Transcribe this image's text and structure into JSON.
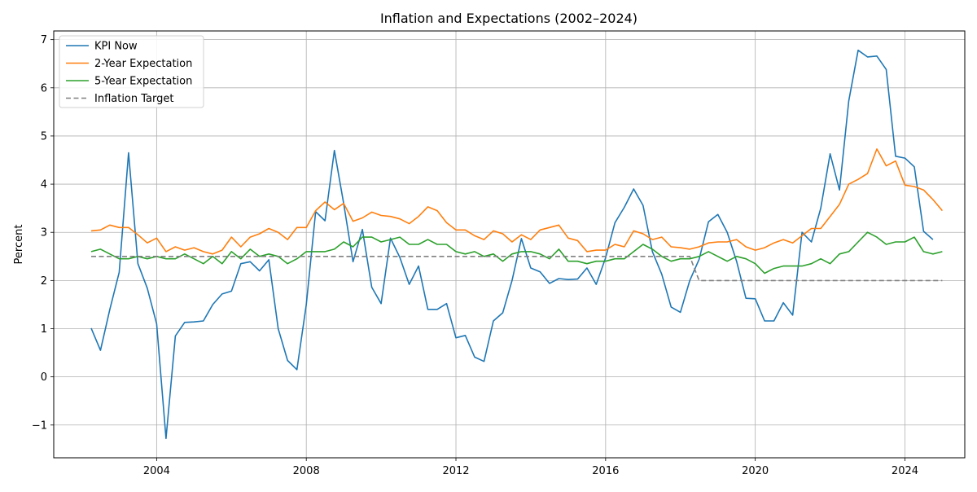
{
  "chart_data": {
    "type": "line",
    "title": "Inflation and Expectations (2002–2024)",
    "xlabel": "",
    "ylabel": "Percent",
    "xlim": [
      2001.25,
      2025.6
    ],
    "ylim": [
      -1.68,
      7.18
    ],
    "x_ticks": [
      2004,
      2008,
      2012,
      2016,
      2020,
      2024
    ],
    "y_ticks": [
      -1,
      0,
      1,
      2,
      3,
      4,
      5,
      6,
      7
    ],
    "y_tick_labels": [
      "−1",
      "0",
      "1",
      "2",
      "3",
      "4",
      "5",
      "6",
      "7"
    ],
    "grid": true,
    "legend_position": "top-left",
    "series": [
      {
        "name": "KPI Now",
        "color": "#1f77b4",
        "style": "solid",
        "x": [
          2002.25,
          2002.5,
          2002.75,
          2003.0,
          2003.25,
          2003.5,
          2003.75,
          2004.0,
          2004.25,
          2004.5,
          2004.75,
          2005.0,
          2005.25,
          2005.5,
          2005.75,
          2006.0,
          2006.25,
          2006.5,
          2006.75,
          2007.0,
          2007.25,
          2007.5,
          2007.75,
          2008.0,
          2008.25,
          2008.5,
          2008.75,
          2009.0,
          2009.25,
          2009.5,
          2009.75,
          2010.0,
          2010.25,
          2010.5,
          2010.75,
          2011.0,
          2011.25,
          2011.5,
          2011.75,
          2012.0,
          2012.25,
          2012.5,
          2012.75,
          2013.0,
          2013.25,
          2013.5,
          2013.75,
          2014.0,
          2014.25,
          2014.5,
          2014.75,
          2015.0,
          2015.25,
          2015.5,
          2015.75,
          2016.0,
          2016.25,
          2016.5,
          2016.75,
          2017.0,
          2017.25,
          2017.5,
          2017.75,
          2018.0,
          2018.25,
          2018.5,
          2018.75,
          2019.0,
          2019.25,
          2019.5,
          2019.75,
          2020.0,
          2020.25,
          2020.5,
          2020.75,
          2021.0,
          2021.25,
          2021.5,
          2021.75,
          2022.0,
          2022.25,
          2022.5,
          2022.75,
          2023.0,
          2023.25,
          2023.5,
          2023.75,
          2024.0,
          2024.25,
          2024.5,
          2024.75
        ],
        "y": [
          1.01,
          0.55,
          1.4,
          2.17,
          4.65,
          2.35,
          1.84,
          1.1,
          -1.28,
          0.85,
          1.13,
          1.14,
          1.16,
          1.5,
          1.72,
          1.78,
          2.35,
          2.39,
          2.2,
          2.43,
          1.0,
          0.34,
          0.15,
          1.5,
          3.43,
          3.24,
          4.7,
          3.6,
          2.39,
          3.06,
          1.86,
          1.52,
          2.88,
          2.48,
          1.92,
          2.3,
          1.4,
          1.4,
          1.52,
          0.81,
          0.86,
          0.41,
          0.32,
          1.16,
          1.33,
          2.0,
          2.87,
          2.26,
          2.18,
          1.94,
          2.04,
          2.02,
          2.03,
          2.26,
          1.92,
          2.47,
          3.2,
          3.52,
          3.9,
          3.56,
          2.6,
          2.13,
          1.45,
          1.34,
          2.0,
          2.44,
          3.22,
          3.37,
          3.0,
          2.4,
          1.63,
          1.62,
          1.16,
          1.16,
          1.54,
          1.28,
          3.0,
          2.8,
          3.5,
          4.63,
          3.88,
          5.73,
          6.78,
          6.64,
          6.66,
          6.38,
          4.58,
          4.54,
          4.36,
          3.02,
          2.85
        ]
      },
      {
        "name": "2-Year Expectation",
        "color": "#ff7f0e",
        "style": "solid",
        "x": [
          2002.25,
          2002.5,
          2002.75,
          2003.0,
          2003.25,
          2003.5,
          2003.75,
          2004.0,
          2004.25,
          2004.5,
          2004.75,
          2005.0,
          2005.25,
          2005.5,
          2005.75,
          2006.0,
          2006.25,
          2006.5,
          2006.75,
          2007.0,
          2007.25,
          2007.5,
          2007.75,
          2008.0,
          2008.25,
          2008.5,
          2008.75,
          2009.0,
          2009.25,
          2009.5,
          2009.75,
          2010.0,
          2010.25,
          2010.5,
          2010.75,
          2011.0,
          2011.25,
          2011.5,
          2011.75,
          2012.0,
          2012.25,
          2012.5,
          2012.75,
          2013.0,
          2013.25,
          2013.5,
          2013.75,
          2014.0,
          2014.25,
          2014.5,
          2014.75,
          2015.0,
          2015.25,
          2015.5,
          2015.75,
          2016.0,
          2016.25,
          2016.5,
          2016.75,
          2017.0,
          2017.25,
          2017.5,
          2017.75,
          2018.0,
          2018.25,
          2018.5,
          2018.75,
          2019.0,
          2019.25,
          2019.5,
          2019.75,
          2020.0,
          2020.25,
          2020.5,
          2020.75,
          2021.0,
          2021.25,
          2021.5,
          2021.75,
          2022.0,
          2022.25,
          2022.5,
          2022.75,
          2023.0,
          2023.25,
          2023.5,
          2023.75,
          2024.0,
          2024.25,
          2024.5,
          2024.75,
          2025.0
        ],
        "y": [
          3.03,
          3.05,
          3.15,
          3.1,
          3.1,
          2.95,
          2.78,
          2.88,
          2.6,
          2.7,
          2.63,
          2.68,
          2.6,
          2.55,
          2.63,
          2.9,
          2.7,
          2.9,
          2.97,
          3.08,
          3.0,
          2.85,
          3.1,
          3.1,
          3.45,
          3.63,
          3.47,
          3.6,
          3.23,
          3.3,
          3.42,
          3.35,
          3.33,
          3.28,
          3.18,
          3.33,
          3.53,
          3.45,
          3.2,
          3.05,
          3.05,
          2.93,
          2.85,
          3.03,
          2.97,
          2.8,
          2.95,
          2.85,
          3.05,
          3.1,
          3.15,
          2.88,
          2.83,
          2.6,
          2.63,
          2.63,
          2.75,
          2.7,
          3.03,
          2.97,
          2.85,
          2.9,
          2.7,
          2.68,
          2.65,
          2.7,
          2.78,
          2.8,
          2.8,
          2.85,
          2.7,
          2.63,
          2.68,
          2.78,
          2.85,
          2.78,
          2.93,
          3.08,
          3.08,
          3.33,
          3.58,
          4.0,
          4.1,
          4.22,
          4.73,
          4.38,
          4.48,
          3.98,
          3.95,
          3.88,
          3.68,
          3.45
        ]
      },
      {
        "name": "5-Year Expectation",
        "color": "#2ca02c",
        "style": "solid",
        "x": [
          2002.25,
          2002.5,
          2002.75,
          2003.0,
          2003.25,
          2003.5,
          2003.75,
          2004.0,
          2004.25,
          2004.5,
          2004.75,
          2005.0,
          2005.25,
          2005.5,
          2005.75,
          2006.0,
          2006.25,
          2006.5,
          2006.75,
          2007.0,
          2007.25,
          2007.5,
          2007.75,
          2008.0,
          2008.25,
          2008.5,
          2008.75,
          2009.0,
          2009.25,
          2009.5,
          2009.75,
          2010.0,
          2010.25,
          2010.5,
          2010.75,
          2011.0,
          2011.25,
          2011.5,
          2011.75,
          2012.0,
          2012.25,
          2012.5,
          2012.75,
          2013.0,
          2013.25,
          2013.5,
          2013.75,
          2014.0,
          2014.25,
          2014.5,
          2014.75,
          2015.0,
          2015.25,
          2015.5,
          2015.75,
          2016.0,
          2016.25,
          2016.5,
          2016.75,
          2017.0,
          2017.25,
          2017.5,
          2017.75,
          2018.0,
          2018.25,
          2018.5,
          2018.75,
          2019.0,
          2019.25,
          2019.5,
          2019.75,
          2020.0,
          2020.25,
          2020.5,
          2020.75,
          2021.0,
          2021.25,
          2021.5,
          2021.75,
          2022.0,
          2022.25,
          2022.5,
          2022.75,
          2023.0,
          2023.25,
          2023.5,
          2023.75,
          2024.0,
          2024.25,
          2024.5,
          2024.75,
          2025.0
        ],
        "y": [
          2.6,
          2.65,
          2.55,
          2.45,
          2.45,
          2.5,
          2.45,
          2.5,
          2.45,
          2.45,
          2.55,
          2.45,
          2.35,
          2.5,
          2.35,
          2.6,
          2.45,
          2.65,
          2.5,
          2.55,
          2.5,
          2.35,
          2.45,
          2.6,
          2.6,
          2.6,
          2.65,
          2.8,
          2.7,
          2.9,
          2.9,
          2.8,
          2.85,
          2.9,
          2.75,
          2.75,
          2.85,
          2.75,
          2.75,
          2.6,
          2.55,
          2.6,
          2.5,
          2.55,
          2.4,
          2.55,
          2.6,
          2.6,
          2.55,
          2.45,
          2.65,
          2.4,
          2.4,
          2.35,
          2.4,
          2.4,
          2.45,
          2.45,
          2.6,
          2.75,
          2.65,
          2.5,
          2.4,
          2.45,
          2.45,
          2.5,
          2.6,
          2.5,
          2.4,
          2.5,
          2.45,
          2.35,
          2.15,
          2.25,
          2.3,
          2.3,
          2.3,
          2.35,
          2.45,
          2.35,
          2.55,
          2.6,
          2.8,
          3.0,
          2.9,
          2.75,
          2.8,
          2.8,
          2.9,
          2.6,
          2.55,
          2.6
        ]
      },
      {
        "name": "Inflation Target",
        "color": "#808080",
        "style": "dashed",
        "x": [
          2002.25,
          2018.25,
          2018.5,
          2025.0
        ],
        "y": [
          2.5,
          2.5,
          2.0,
          2.0
        ]
      }
    ]
  }
}
